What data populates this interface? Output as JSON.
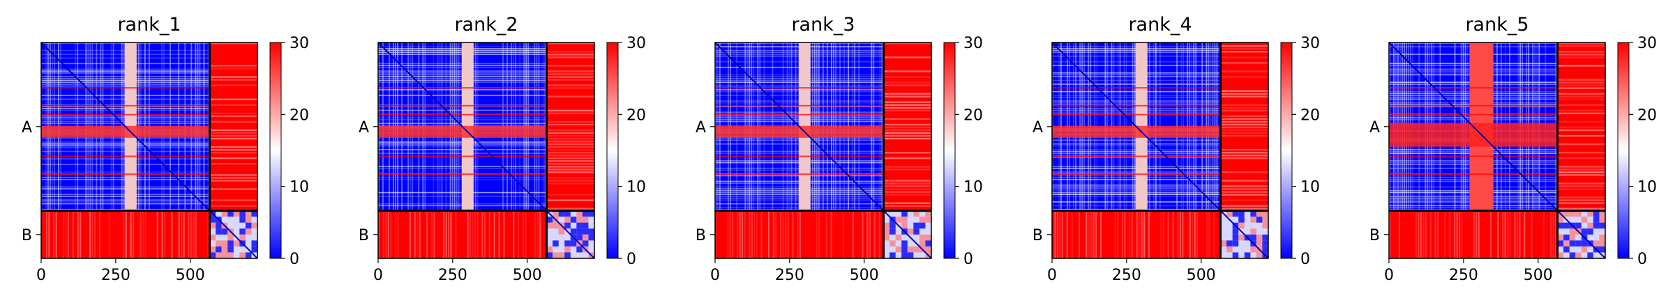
{
  "chart_data": [
    {
      "type": "heatmap",
      "title": "rank_1",
      "colormap": {
        "name": "bwr",
        "low_color": "#0000ff",
        "mid_color": "#ffffff",
        "high_color": "#ff0000"
      },
      "color_range": [
        0,
        30
      ],
      "colorbar_ticks": [
        "0",
        "10",
        "20",
        "30"
      ],
      "x_ticks": [
        "0",
        "250",
        "500"
      ],
      "y_ticks": [
        "A",
        "B"
      ],
      "chain_lengths": {
        "A": 565,
        "B": 160
      },
      "xlim": [
        0,
        725
      ],
      "ylim": [
        0,
        725
      ]
    },
    {
      "type": "heatmap",
      "title": "rank_2",
      "colormap": {
        "name": "bwr",
        "low_color": "#0000ff",
        "mid_color": "#ffffff",
        "high_color": "#ff0000"
      },
      "color_range": [
        0,
        30
      ],
      "colorbar_ticks": [
        "0",
        "10",
        "20",
        "30"
      ],
      "x_ticks": [
        "0",
        "250",
        "500"
      ],
      "y_ticks": [
        "A",
        "B"
      ],
      "chain_lengths": {
        "A": 565,
        "B": 160
      },
      "xlim": [
        0,
        725
      ],
      "ylim": [
        0,
        725
      ]
    },
    {
      "type": "heatmap",
      "title": "rank_3",
      "colormap": {
        "name": "bwr",
        "low_color": "#0000ff",
        "mid_color": "#ffffff",
        "high_color": "#ff0000"
      },
      "color_range": [
        0,
        30
      ],
      "colorbar_ticks": [
        "0",
        "10",
        "20",
        "30"
      ],
      "x_ticks": [
        "0",
        "250",
        "500"
      ],
      "y_ticks": [
        "A",
        "B"
      ],
      "chain_lengths": {
        "A": 565,
        "B": 160
      },
      "xlim": [
        0,
        725
      ],
      "ylim": [
        0,
        725
      ]
    },
    {
      "type": "heatmap",
      "title": "rank_4",
      "colormap": {
        "name": "bwr",
        "low_color": "#0000ff",
        "mid_color": "#ffffff",
        "high_color": "#ff0000"
      },
      "color_range": [
        0,
        30
      ],
      "colorbar_ticks": [
        "0",
        "10",
        "20",
        "30"
      ],
      "x_ticks": [
        "0",
        "250",
        "500"
      ],
      "y_ticks": [
        "A",
        "B"
      ],
      "chain_lengths": {
        "A": 565,
        "B": 160
      },
      "xlim": [
        0,
        725
      ],
      "ylim": [
        0,
        725
      ]
    },
    {
      "type": "heatmap",
      "title": "rank_5",
      "colormap": {
        "name": "bwr",
        "low_color": "#0000ff",
        "mid_color": "#ffffff",
        "high_color": "#ff0000"
      },
      "color_range": [
        0,
        30
      ],
      "colorbar_ticks": [
        "0",
        "10",
        "20",
        "30"
      ],
      "x_ticks": [
        "0",
        "250",
        "500"
      ],
      "y_ticks": [
        "A",
        "B"
      ],
      "chain_lengths": {
        "A": 565,
        "B": 160
      },
      "xlim": [
        0,
        725
      ],
      "ylim": [
        0,
        725
      ]
    }
  ]
}
